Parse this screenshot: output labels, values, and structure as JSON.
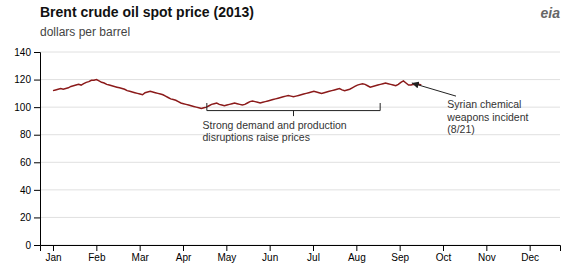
{
  "chart_data": {
    "type": "line",
    "title": "Brent crude oil spot price (2013)",
    "subtitle": "dollars per barrel",
    "color": "#8B1A1A",
    "grid": true,
    "xlim": [
      -0.3,
      11.7
    ],
    "xticks": [
      {
        "value": 0,
        "label": "Jan"
      },
      {
        "value": 1,
        "label": "Feb"
      },
      {
        "value": 2,
        "label": "Mar"
      },
      {
        "value": 3,
        "label": "Apr"
      },
      {
        "value": 4,
        "label": "May"
      },
      {
        "value": 5,
        "label": "Jun"
      },
      {
        "value": 6,
        "label": "Jul"
      },
      {
        "value": 7,
        "label": "Aug"
      },
      {
        "value": 8,
        "label": "Sep"
      },
      {
        "value": 9,
        "label": "Oct"
      },
      {
        "value": 10,
        "label": "Nov"
      },
      {
        "value": 11,
        "label": "Dec"
      }
    ],
    "ylim": [
      0,
      140
    ],
    "yticks": [
      0,
      20,
      40,
      60,
      80,
      100,
      120,
      140
    ],
    "x": [
      0,
      0.059,
      0.1181,
      0.1771,
      0.2361,
      0.2951,
      0.3542,
      0.4132,
      0.4722,
      0.53125,
      0.5903,
      0.6493,
      0.7083,
      0.7674,
      0.8264,
      0.8854,
      0.9444,
      1.0035,
      1.0625,
      1.1215,
      1.1806,
      1.2396,
      1.2986,
      1.3576,
      1.4167,
      1.4757,
      1.5347,
      1.59375,
      1.6528,
      1.7118,
      1.7708,
      1.8299,
      1.8889,
      1.9479,
      2.0069,
      2.066,
      2.125,
      2.184,
      2.2431,
      2.3021,
      2.3611,
      2.4201,
      2.4792,
      2.5382,
      2.5972,
      2.65625,
      2.7153,
      2.7743,
      2.8333,
      2.8924,
      2.9514,
      3.0104,
      3.0694,
      3.1285,
      3.1875,
      3.2465,
      3.3056,
      3.3646,
      3.4236,
      3.4826,
      3.5417,
      3.6007,
      3.6597,
      3.71875,
      3.7778,
      3.8368,
      3.8958,
      3.9549,
      4.0139,
      4.0729,
      4.1319,
      4.191,
      4.25,
      4.309,
      4.3681,
      4.4271,
      4.4861,
      4.5451,
      4.6042,
      4.6632,
      4.7222,
      4.78125,
      4.8403,
      4.8993,
      4.9583,
      5.0174,
      5.0764,
      5.1354,
      5.1944,
      5.2535,
      5.3125,
      5.3715,
      5.4306,
      5.4896,
      5.5486,
      5.6076,
      5.6667,
      5.7257,
      5.7847,
      5.84375,
      5.9028,
      5.9618,
      6.0208,
      6.0799,
      6.1389,
      6.1979,
      6.2569,
      6.316,
      6.375,
      6.434,
      6.4931,
      6.5521,
      6.6111,
      6.6701,
      6.7292,
      6.7882,
      6.8472,
      6.90625,
      6.9653,
      7.0243,
      7.0833,
      7.1424,
      7.2014,
      7.2604,
      7.3194,
      7.3785,
      7.4375,
      7.4965,
      7.5556,
      7.6146,
      7.6736,
      7.7326,
      7.7917,
      7.8507,
      7.9097,
      7.96875,
      8.0278,
      8.0868,
      8.1458,
      8.2049,
      8.2639,
      8.3229,
      8.3819,
      8.441,
      8.5
    ],
    "values": [
      112.0,
      112.5,
      113.0,
      113.5,
      113.0,
      113.5,
      114.0,
      115.0,
      115.5,
      116.0,
      116.5,
      116.0,
      117.0,
      118.0,
      118.5,
      119.5,
      119.5,
      120.0,
      119.0,
      118.0,
      117.5,
      116.5,
      116.0,
      115.5,
      115.0,
      114.5,
      114.0,
      113.5,
      113.0,
      112.0,
      111.5,
      111.0,
      110.5,
      110.0,
      109.5,
      109.0,
      110.5,
      111.0,
      111.5,
      111.0,
      110.5,
      110.0,
      109.5,
      109.0,
      108.0,
      107.0,
      106.0,
      105.5,
      105.0,
      104.0,
      103.0,
      102.5,
      102.0,
      101.5,
      101.0,
      100.5,
      100.0,
      99.5,
      99.0,
      99.5,
      100.0,
      101.0,
      102.0,
      102.5,
      103.0,
      102.0,
      101.5,
      101.0,
      101.5,
      102.0,
      102.5,
      103.0,
      102.5,
      102.0,
      101.5,
      102.0,
      103.0,
      104.0,
      104.5,
      104.0,
      103.5,
      103.0,
      103.5,
      104.0,
      104.5,
      105.0,
      105.5,
      106.0,
      106.5,
      107.0,
      107.5,
      108.0,
      108.5,
      108.0,
      107.5,
      108.0,
      108.5,
      109.0,
      109.5,
      110.0,
      110.5,
      111.0,
      111.5,
      111.0,
      110.5,
      110.0,
      110.5,
      111.0,
      111.5,
      112.0,
      112.5,
      113.0,
      113.5,
      112.5,
      112.0,
      112.5,
      113.0,
      114.0,
      115.0,
      116.0,
      116.5,
      117.0,
      116.5,
      115.5,
      114.5,
      115.0,
      115.5,
      116.0,
      116.5,
      117.0,
      117.5,
      117.0,
      116.5,
      116.0,
      115.5,
      116.5,
      118.0,
      119.0,
      117.5,
      116.0,
      116.0,
      116.5,
      116.0,
      116.5,
      116.0
    ],
    "annotations": [
      "Strong demand and production\ndisruptions raise prices",
      "Syrian chemical\nweapons incident\n(8/21)",
      "eia"
    ]
  }
}
